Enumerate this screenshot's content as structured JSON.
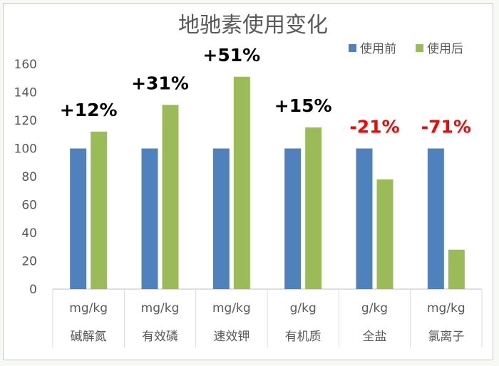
{
  "chart_data": {
    "type": "bar",
    "title": "地驰素使用变化",
    "categories": [
      "碱解氮",
      "有效磷",
      "速效钾",
      "有机质",
      "全盐",
      "氯离子"
    ],
    "units": [
      "mg/kg",
      "mg/kg",
      "mg/kg",
      "g/kg",
      "g/kg",
      "mg/kg"
    ],
    "series": [
      {
        "name": "使用前",
        "values": [
          100,
          100,
          100,
          100,
          100,
          100
        ],
        "color": "#4f81bd"
      },
      {
        "name": "使用后",
        "values": [
          112,
          131,
          151,
          115,
          78,
          28
        ],
        "color": "#9bbb59"
      }
    ],
    "annotations": [
      {
        "text": "+12%",
        "color": "#000000"
      },
      {
        "text": "+31%",
        "color": "#000000"
      },
      {
        "text": "+51%",
        "color": "#000000"
      },
      {
        "text": "+15%",
        "color": "#000000"
      },
      {
        "text": "-21%",
        "color": "#ff0000"
      },
      {
        "text": "-71%",
        "color": "#ff0000"
      }
    ],
    "ylim": [
      0,
      160
    ],
    "yticks": [
      0,
      20,
      40,
      60,
      80,
      100,
      120,
      140,
      160
    ],
    "grid": false,
    "legend": "top-right"
  }
}
